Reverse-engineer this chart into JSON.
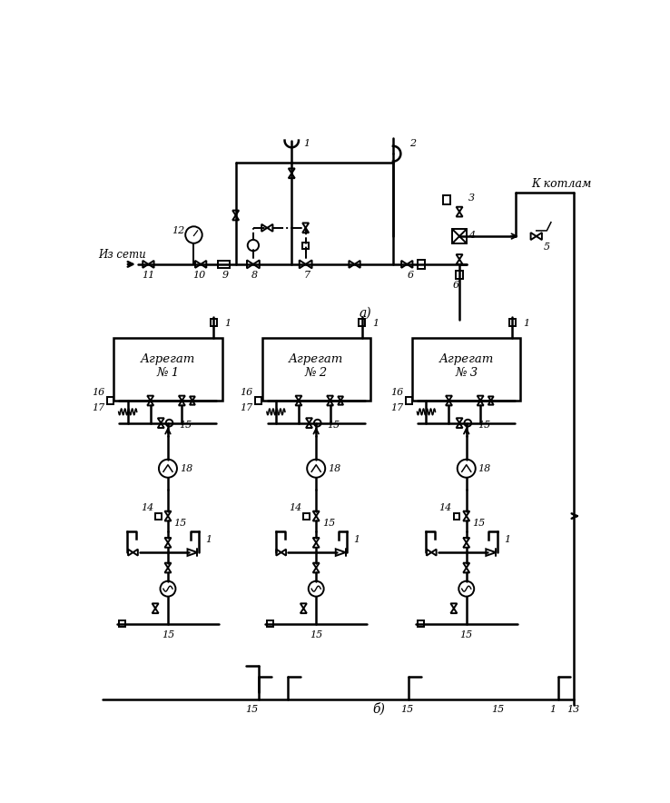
{
  "label_iz_seti": "Из сети",
  "label_k_kotlam": "К котлам",
  "label_a": "а)",
  "label_b": "б)",
  "aggregat_labels": [
    "Агрегат\n№ 1",
    "Агрегат\n№ 2",
    "Агрегат\n№ 3"
  ],
  "fig_w": 7.38,
  "fig_h": 8.84,
  "dpi": 100
}
